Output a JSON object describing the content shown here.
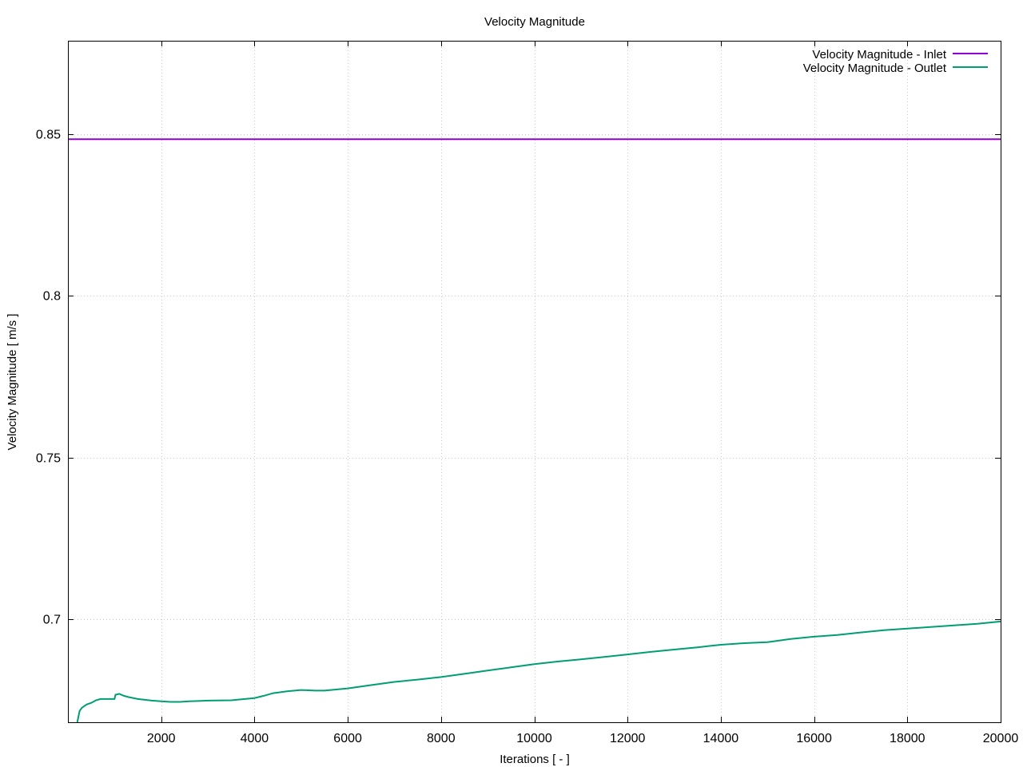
{
  "chart_data": {
    "type": "line",
    "title": "Velocity Magnitude",
    "xlabel": "Iterations [ - ]",
    "ylabel": "Velocity Magnitude [ m/s ]",
    "xlim": [
      0,
      20000
    ],
    "ylim": [
      0.668,
      0.879
    ],
    "xticks": [
      2000,
      4000,
      6000,
      8000,
      10000,
      12000,
      14000,
      16000,
      18000,
      20000
    ],
    "yticks": [
      0.7,
      0.75,
      0.8,
      0.85
    ],
    "xtick_labels": [
      "2000",
      "4000",
      "6000",
      "8000",
      "10000",
      "12000",
      "14000",
      "16000",
      "18000",
      "20000"
    ],
    "ytick_labels": [
      "0.7",
      "0.75",
      "0.8",
      "0.85"
    ],
    "grid": true,
    "legend_position": "top-right",
    "series": [
      {
        "name": "Velocity Magnitude - Inlet",
        "color": "#9400d3",
        "x": [
          0,
          20000
        ],
        "y": [
          0.8485,
          0.8485
        ]
      },
      {
        "name": "Velocity Magnitude - Outlet",
        "color": "#009e73",
        "x": [
          200,
          250,
          300,
          400,
          500,
          600,
          700,
          800,
          1000,
          1020,
          1100,
          1200,
          1300,
          1500,
          1800,
          2000,
          2200,
          2400,
          2600,
          3000,
          3500,
          4000,
          4200,
          4400,
          4700,
          5000,
          5300,
          5500,
          6000,
          6500,
          7000,
          7500,
          8000,
          8500,
          9000,
          9500,
          10000,
          10500,
          11000,
          11500,
          12000,
          12500,
          13000,
          13500,
          14000,
          14500,
          15000,
          15500,
          16000,
          16500,
          17000,
          17500,
          18000,
          18500,
          19000,
          19500,
          20000
        ],
        "y": [
          0.668,
          0.6715,
          0.6725,
          0.6735,
          0.674,
          0.6748,
          0.6752,
          0.6752,
          0.6752,
          0.6765,
          0.6768,
          0.6762,
          0.6758,
          0.6752,
          0.6747,
          0.6745,
          0.6743,
          0.6743,
          0.6745,
          0.6747,
          0.6748,
          0.6755,
          0.6762,
          0.677,
          0.6776,
          0.678,
          0.6778,
          0.6778,
          0.6785,
          0.6795,
          0.6805,
          0.6812,
          0.682,
          0.683,
          0.684,
          0.685,
          0.686,
          0.6868,
          0.6875,
          0.6882,
          0.689,
          0.6898,
          0.6905,
          0.6912,
          0.692,
          0.6925,
          0.6928,
          0.6938,
          0.6945,
          0.695,
          0.6958,
          0.6965,
          0.697,
          0.6975,
          0.698,
          0.6985,
          0.6992
        ]
      }
    ]
  }
}
